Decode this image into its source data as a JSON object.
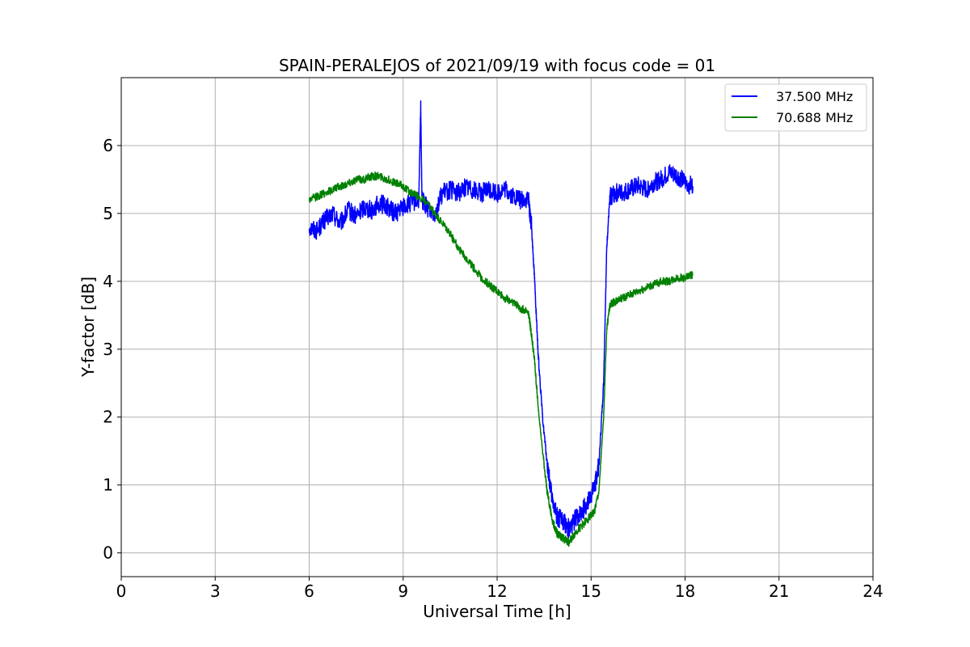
{
  "chart_data": {
    "type": "line",
    "title": "SPAIN-PERALEJOS of 2021/09/19 with focus code = 01",
    "xlabel": "Universal Time [h]",
    "ylabel": "Y-factor [dB]",
    "xlim": [
      0,
      24
    ],
    "ylim": [
      -0.35,
      7.0
    ],
    "xticks": [
      0,
      3,
      6,
      9,
      12,
      15,
      18,
      21,
      24
    ],
    "yticks": [
      0,
      1,
      2,
      3,
      4,
      5,
      6
    ],
    "grid": true,
    "legend_position": "top-right",
    "series": [
      {
        "name": "37.500 MHz",
        "color": "#0000ff",
        "x": [
          6.0,
          6.25,
          6.5,
          6.75,
          7.0,
          7.25,
          7.5,
          7.75,
          8.0,
          8.25,
          8.5,
          8.75,
          9.0,
          9.25,
          9.5,
          9.56,
          9.6,
          9.75,
          10.0,
          10.25,
          10.5,
          10.75,
          11.0,
          11.25,
          11.5,
          11.75,
          12.0,
          12.25,
          12.5,
          12.75,
          13.0,
          13.1,
          13.2,
          13.3,
          13.45,
          13.6,
          13.75,
          13.9,
          14.0,
          14.15,
          14.3,
          14.5,
          14.7,
          14.9,
          15.1,
          15.25,
          15.4,
          15.5,
          15.6,
          15.75,
          16.0,
          16.25,
          16.5,
          16.75,
          17.0,
          17.25,
          17.5,
          17.75,
          18.0,
          18.25
        ],
        "y": [
          4.8,
          4.75,
          4.9,
          5.0,
          4.85,
          5.05,
          4.95,
          5.1,
          5.05,
          5.15,
          5.1,
          5.0,
          5.1,
          5.15,
          5.2,
          6.6,
          5.2,
          5.1,
          5.0,
          5.3,
          5.35,
          5.3,
          5.4,
          5.35,
          5.3,
          5.35,
          5.3,
          5.35,
          5.25,
          5.2,
          5.2,
          4.8,
          4.0,
          3.0,
          2.0,
          1.3,
          0.8,
          0.55,
          0.5,
          0.45,
          0.35,
          0.5,
          0.6,
          0.75,
          0.95,
          1.3,
          2.5,
          4.5,
          5.25,
          5.3,
          5.3,
          5.35,
          5.4,
          5.35,
          5.45,
          5.5,
          5.6,
          5.55,
          5.45,
          5.4
        ]
      },
      {
        "name": "70.688 MHz",
        "color": "#008000",
        "x": [
          6.0,
          6.25,
          6.5,
          6.75,
          7.0,
          7.25,
          7.5,
          7.75,
          8.0,
          8.25,
          8.5,
          8.75,
          9.0,
          9.25,
          9.5,
          9.75,
          10.0,
          10.25,
          10.5,
          10.75,
          11.0,
          11.25,
          11.5,
          11.75,
          12.0,
          12.25,
          12.5,
          12.75,
          13.0,
          13.1,
          13.2,
          13.3,
          13.45,
          13.6,
          13.75,
          13.9,
          14.0,
          14.15,
          14.3,
          14.5,
          14.7,
          14.9,
          15.1,
          15.25,
          15.4,
          15.5,
          15.6,
          15.75,
          16.0,
          16.25,
          16.5,
          16.75,
          17.0,
          17.25,
          17.5,
          17.75,
          18.0,
          18.25
        ],
        "y": [
          5.2,
          5.25,
          5.3,
          5.35,
          5.4,
          5.45,
          5.5,
          5.5,
          5.55,
          5.55,
          5.5,
          5.45,
          5.4,
          5.3,
          5.25,
          5.15,
          5.0,
          4.85,
          4.7,
          4.5,
          4.35,
          4.2,
          4.05,
          3.95,
          3.85,
          3.75,
          3.7,
          3.6,
          3.55,
          3.2,
          2.8,
          2.2,
          1.5,
          0.9,
          0.5,
          0.3,
          0.25,
          0.2,
          0.15,
          0.3,
          0.4,
          0.5,
          0.6,
          0.9,
          2.0,
          3.3,
          3.65,
          3.7,
          3.75,
          3.8,
          3.85,
          3.9,
          3.95,
          4.0,
          4.0,
          4.05,
          4.05,
          4.1
        ]
      }
    ]
  }
}
